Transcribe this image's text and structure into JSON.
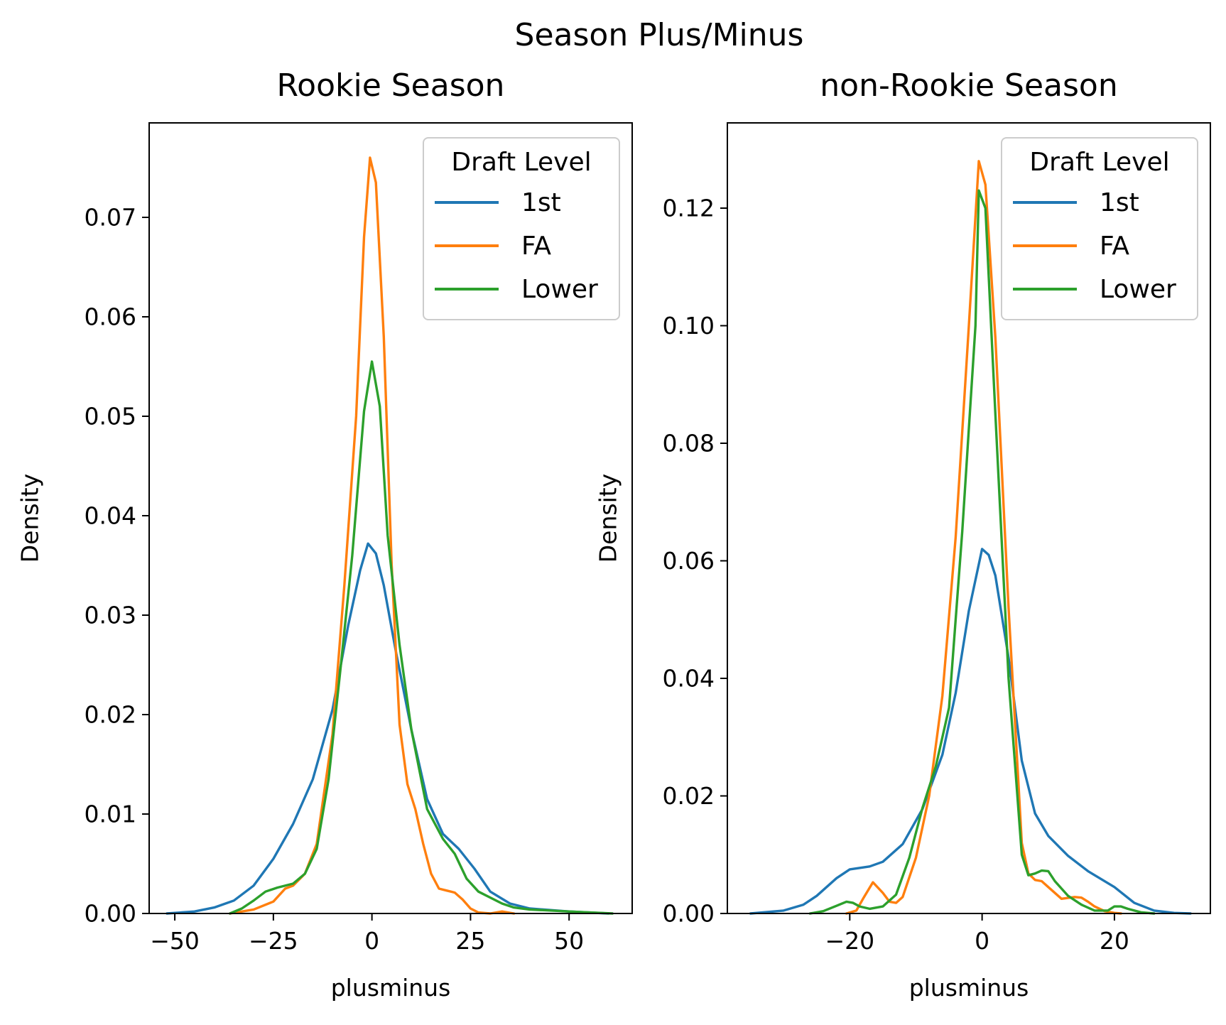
{
  "figure": {
    "suptitle": "Season Plus/Minus"
  },
  "chart_data": [
    {
      "type": "line",
      "title": "Rookie Season",
      "xlabel": "plusminus",
      "ylabel": "Density",
      "xlim": [
        -56.5,
        66
      ],
      "ylim": [
        0,
        0.0795
      ],
      "xticks": [
        -50,
        -25,
        0,
        25,
        50
      ],
      "xtick_labels": [
        "−50",
        "−25",
        "0",
        "25",
        "50"
      ],
      "yticks": [
        0,
        0.01,
        0.02,
        0.03,
        0.04,
        0.05,
        0.06,
        0.07
      ],
      "ytick_labels": [
        "0.00",
        "0.01",
        "0.02",
        "0.03",
        "0.04",
        "0.05",
        "0.06",
        "0.07"
      ],
      "grid": false,
      "legend": {
        "title": "Draft Level",
        "position": "upper right"
      },
      "series": [
        {
          "name": "1st",
          "color": "#1f77b4",
          "points": [
            [
              -52,
              0
            ],
            [
              -45,
              0.0002
            ],
            [
              -40,
              0.0006
            ],
            [
              -35,
              0.0013
            ],
            [
              -30,
              0.0028
            ],
            [
              -25,
              0.0055
            ],
            [
              -20,
              0.009
            ],
            [
              -15,
              0.0135
            ],
            [
              -10,
              0.0205
            ],
            [
              -6,
              0.029
            ],
            [
              -3,
              0.0345
            ],
            [
              -1,
              0.0372
            ],
            [
              1,
              0.0362
            ],
            [
              3,
              0.033
            ],
            [
              6,
              0.0265
            ],
            [
              10,
              0.0185
            ],
            [
              14,
              0.0115
            ],
            [
              18,
              0.008
            ],
            [
              22,
              0.0065
            ],
            [
              26,
              0.0045
            ],
            [
              30,
              0.0022
            ],
            [
              35,
              0.001
            ],
            [
              40,
              0.0005
            ],
            [
              50,
              0.0002
            ],
            [
              60,
              0
            ]
          ]
        },
        {
          "name": "FA",
          "color": "#ff7f0e",
          "points": [
            [
              -36,
              0
            ],
            [
              -30,
              0.0004
            ],
            [
              -25,
              0.0012
            ],
            [
              -22,
              0.0025
            ],
            [
              -20,
              0.0028
            ],
            [
              -17,
              0.004
            ],
            [
              -14,
              0.007
            ],
            [
              -10,
              0.018
            ],
            [
              -7,
              0.033
            ],
            [
              -4,
              0.05
            ],
            [
              -2,
              0.068
            ],
            [
              -0.5,
              0.076
            ],
            [
              1,
              0.0735
            ],
            [
              3,
              0.058
            ],
            [
              5,
              0.035
            ],
            [
              7,
              0.019
            ],
            [
              9,
              0.013
            ],
            [
              11,
              0.0105
            ],
            [
              13,
              0.007
            ],
            [
              15,
              0.004
            ],
            [
              17,
              0.0025
            ],
            [
              19,
              0.0023
            ],
            [
              21,
              0.0021
            ],
            [
              23,
              0.0014
            ],
            [
              25,
              0.0005
            ],
            [
              27,
              0.0001
            ],
            [
              30,
              0
            ],
            [
              33,
              0.0002
            ],
            [
              36,
              0
            ]
          ]
        },
        {
          "name": "Lower",
          "color": "#2ca02c",
          "points": [
            [
              -36,
              0
            ],
            [
              -33,
              0.0005
            ],
            [
              -30,
              0.0013
            ],
            [
              -27,
              0.0022
            ],
            [
              -24,
              0.0026
            ],
            [
              -20,
              0.003
            ],
            [
              -17,
              0.004
            ],
            [
              -14,
              0.0065
            ],
            [
              -11,
              0.0135
            ],
            [
              -8,
              0.0245
            ],
            [
              -5,
              0.036
            ],
            [
              -2,
              0.0505
            ],
            [
              0,
              0.0555
            ],
            [
              2,
              0.051
            ],
            [
              4,
              0.038
            ],
            [
              7,
              0.027
            ],
            [
              10,
              0.0185
            ],
            [
              14,
              0.0105
            ],
            [
              18,
              0.0075
            ],
            [
              21,
              0.006
            ],
            [
              24,
              0.0035
            ],
            [
              27,
              0.0022
            ],
            [
              30,
              0.0016
            ],
            [
              33,
              0.001
            ],
            [
              36,
              0.0006
            ],
            [
              40,
              0.0004
            ],
            [
              50,
              0.0002
            ],
            [
              61,
              0
            ]
          ]
        }
      ]
    },
    {
      "type": "line",
      "title": "non-Rookie Season",
      "xlabel": "plusminus",
      "ylabel": "Density",
      "xlim": [
        -38.5,
        34.5
      ],
      "ylim": [
        0,
        0.1345
      ],
      "xticks": [
        -20,
        0,
        20
      ],
      "xtick_labels": [
        "−20",
        "0",
        "20"
      ],
      "yticks": [
        0,
        0.02,
        0.04,
        0.06,
        0.08,
        0.1,
        0.12
      ],
      "ytick_labels": [
        "0.00",
        "0.02",
        "0.04",
        "0.06",
        "0.08",
        "0.10",
        "0.12"
      ],
      "grid": false,
      "legend": {
        "title": "Draft Level",
        "position": "upper right"
      },
      "series": [
        {
          "name": "1st",
          "color": "#1f77b4",
          "points": [
            [
              -35,
              0
            ],
            [
              -30,
              0.0005
            ],
            [
              -27,
              0.0015
            ],
            [
              -25,
              0.003
            ],
            [
              -22,
              0.006
            ],
            [
              -20,
              0.0075
            ],
            [
              -17,
              0.008
            ],
            [
              -15,
              0.0088
            ],
            [
              -12,
              0.0118
            ],
            [
              -9,
              0.0178
            ],
            [
              -6,
              0.027
            ],
            [
              -4,
              0.0375
            ],
            [
              -2,
              0.0515
            ],
            [
              0,
              0.062
            ],
            [
              1,
              0.061
            ],
            [
              2,
              0.0575
            ],
            [
              4,
              0.0435
            ],
            [
              6,
              0.026
            ],
            [
              8,
              0.017
            ],
            [
              10,
              0.0132
            ],
            [
              13,
              0.0098
            ],
            [
              16,
              0.0072
            ],
            [
              20,
              0.0045
            ],
            [
              23,
              0.0018
            ],
            [
              26,
              0.0005
            ],
            [
              29,
              0.0001
            ],
            [
              31.5,
              0
            ]
          ]
        },
        {
          "name": "FA",
          "color": "#ff7f0e",
          "points": [
            [
              -20.5,
              0
            ],
            [
              -19,
              0.0005
            ],
            [
              -18,
              0.0025
            ],
            [
              -16.5,
              0.0053
            ],
            [
              -15,
              0.0035
            ],
            [
              -14,
              0.002
            ],
            [
              -13,
              0.0018
            ],
            [
              -12,
              0.0028
            ],
            [
              -10,
              0.0095
            ],
            [
              -8,
              0.02
            ],
            [
              -6,
              0.037
            ],
            [
              -4,
              0.064
            ],
            [
              -2,
              0.1
            ],
            [
              -0.5,
              0.128
            ],
            [
              0.5,
              0.124
            ],
            [
              2,
              0.098
            ],
            [
              4,
              0.052
            ],
            [
              6,
              0.012
            ],
            [
              7,
              0.0068
            ],
            [
              8,
              0.0057
            ],
            [
              9,
              0.0055
            ],
            [
              10,
              0.0045
            ],
            [
              12,
              0.0025
            ],
            [
              14,
              0.0028
            ],
            [
              15,
              0.0027
            ],
            [
              16,
              0.002
            ],
            [
              17,
              0.0012
            ],
            [
              18.5,
              0.0004
            ],
            [
              20,
              0.0001
            ],
            [
              21,
              0
            ]
          ]
        },
        {
          "name": "Lower",
          "color": "#2ca02c",
          "points": [
            [
              -26,
              0
            ],
            [
              -24,
              0.0004
            ],
            [
              -22,
              0.0013
            ],
            [
              -20.5,
              0.002
            ],
            [
              -19.5,
              0.0018
            ],
            [
              -18.5,
              0.0012
            ],
            [
              -17,
              0.0008
            ],
            [
              -15,
              0.0012
            ],
            [
              -13,
              0.0032
            ],
            [
              -11,
              0.0095
            ],
            [
              -9,
              0.018
            ],
            [
              -7,
              0.025
            ],
            [
              -5,
              0.035
            ],
            [
              -3,
              0.065
            ],
            [
              -1,
              0.1
            ],
            [
              -0.5,
              0.123
            ],
            [
              0.5,
              0.12
            ],
            [
              2,
              0.085
            ],
            [
              4,
              0.04
            ],
            [
              6,
              0.01
            ],
            [
              7,
              0.0065
            ],
            [
              8,
              0.0068
            ],
            [
              9,
              0.0073
            ],
            [
              10,
              0.0072
            ],
            [
              11,
              0.0055
            ],
            [
              13,
              0.003
            ],
            [
              15,
              0.0015
            ],
            [
              17,
              0.0005
            ],
            [
              19,
              0.0005
            ],
            [
              20,
              0.0012
            ],
            [
              21,
              0.0012
            ],
            [
              22,
              0.0008
            ],
            [
              24,
              0.0002
            ],
            [
              26,
              0
            ]
          ]
        }
      ]
    }
  ]
}
